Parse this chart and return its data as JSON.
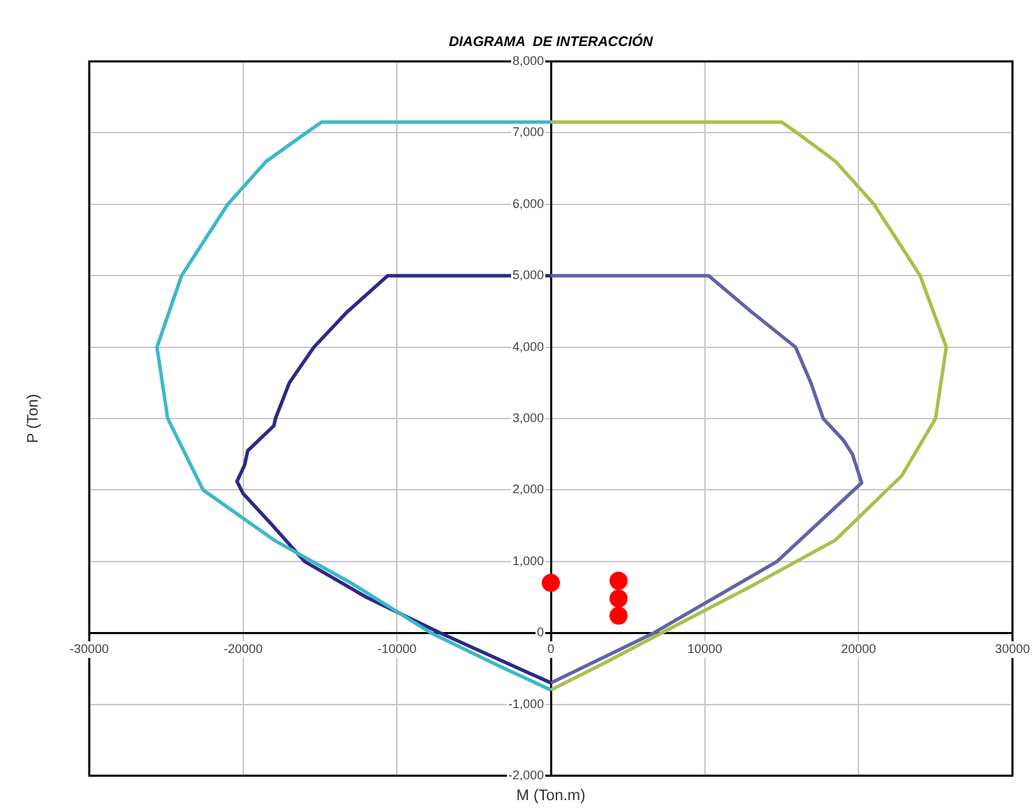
{
  "chart_data": {
    "type": "line",
    "title": "DIAGRAMA  DE INTERACCIÓN",
    "xlabel": "M (Ton.m)",
    "ylabel": "P (Ton)",
    "xlim": [
      -30000,
      30000
    ],
    "xticks": [
      -30000,
      -20000,
      -10000,
      0,
      10000,
      20000,
      30000
    ],
    "ylim": [
      -2000,
      8000
    ],
    "yticks": [
      {
        "value": -2000,
        "label": "-2,000"
      },
      {
        "value": -1000,
        "label": "-1,000"
      },
      0,
      {
        "value": 1000,
        "label": "1,000"
      },
      {
        "value": 2000,
        "label": "2,000"
      },
      {
        "value": 3000,
        "label": "3,000"
      },
      {
        "value": 4000,
        "label": "4,000"
      },
      {
        "value": 5000,
        "label": "5,000"
      },
      {
        "value": 6000,
        "label": "6,000"
      },
      {
        "value": 7000,
        "label": "7,000"
      },
      {
        "value": 8000,
        "label": "8,000"
      }
    ],
    "grid": true,
    "marker": "none",
    "line_style": "solid",
    "series": [
      {
        "type": "line",
        "color": "#3cb8c8",
        "x": [
          0,
          -14900,
          -15900,
          -18500,
          -21000,
          -24000,
          -25600,
          -24900,
          -22600,
          -18000,
          -13000,
          -7800,
          -3500,
          0
        ],
        "values": [
          7150,
          7150,
          7000,
          6600,
          6000,
          5000,
          4000,
          3000,
          2000,
          1300,
          700,
          0,
          -450,
          -800
        ]
      },
      {
        "type": "line",
        "color": "#a8c04a",
        "x": [
          0,
          15000,
          16000,
          18500,
          21000,
          24000,
          25700,
          25000,
          22800,
          18500,
          13000,
          7200,
          3500,
          0
        ],
        "values": [
          7150,
          7150,
          7000,
          6600,
          6000,
          5000,
          4000,
          3000,
          2200,
          1300,
          650,
          0,
          -420,
          -800
        ]
      },
      {
        "type": "line",
        "color": "#2a2a88",
        "x": [
          0,
          -10600,
          -13300,
          -15400,
          -17000,
          -17900,
          -18000,
          -19700,
          -19900,
          -20400,
          -20000,
          -18200,
          -16000,
          -12000,
          -7200,
          0
        ],
        "values": [
          5000,
          5000,
          4480,
          4000,
          3500,
          3000,
          2900,
          2550,
          2350,
          2120,
          1950,
          1530,
          1000,
          500,
          0,
          -700
        ]
      },
      {
        "type": "line",
        "color": "#6262a8",
        "x": [
          0,
          10250,
          13000,
          15900,
          16900,
          17700,
          19000,
          19600,
          20200,
          14700,
          6700,
          0
        ],
        "values": [
          5000,
          5000,
          4500,
          4000,
          3500,
          3000,
          2700,
          2500,
          2100,
          1000,
          0,
          -700
        ]
      },
      {
        "type": "scatter",
        "color": "#ff0000",
        "marker": "circle",
        "x": [
          0,
          4400,
          4400,
          4400
        ],
        "values": [
          700,
          730,
          480,
          240
        ]
      }
    ]
  }
}
